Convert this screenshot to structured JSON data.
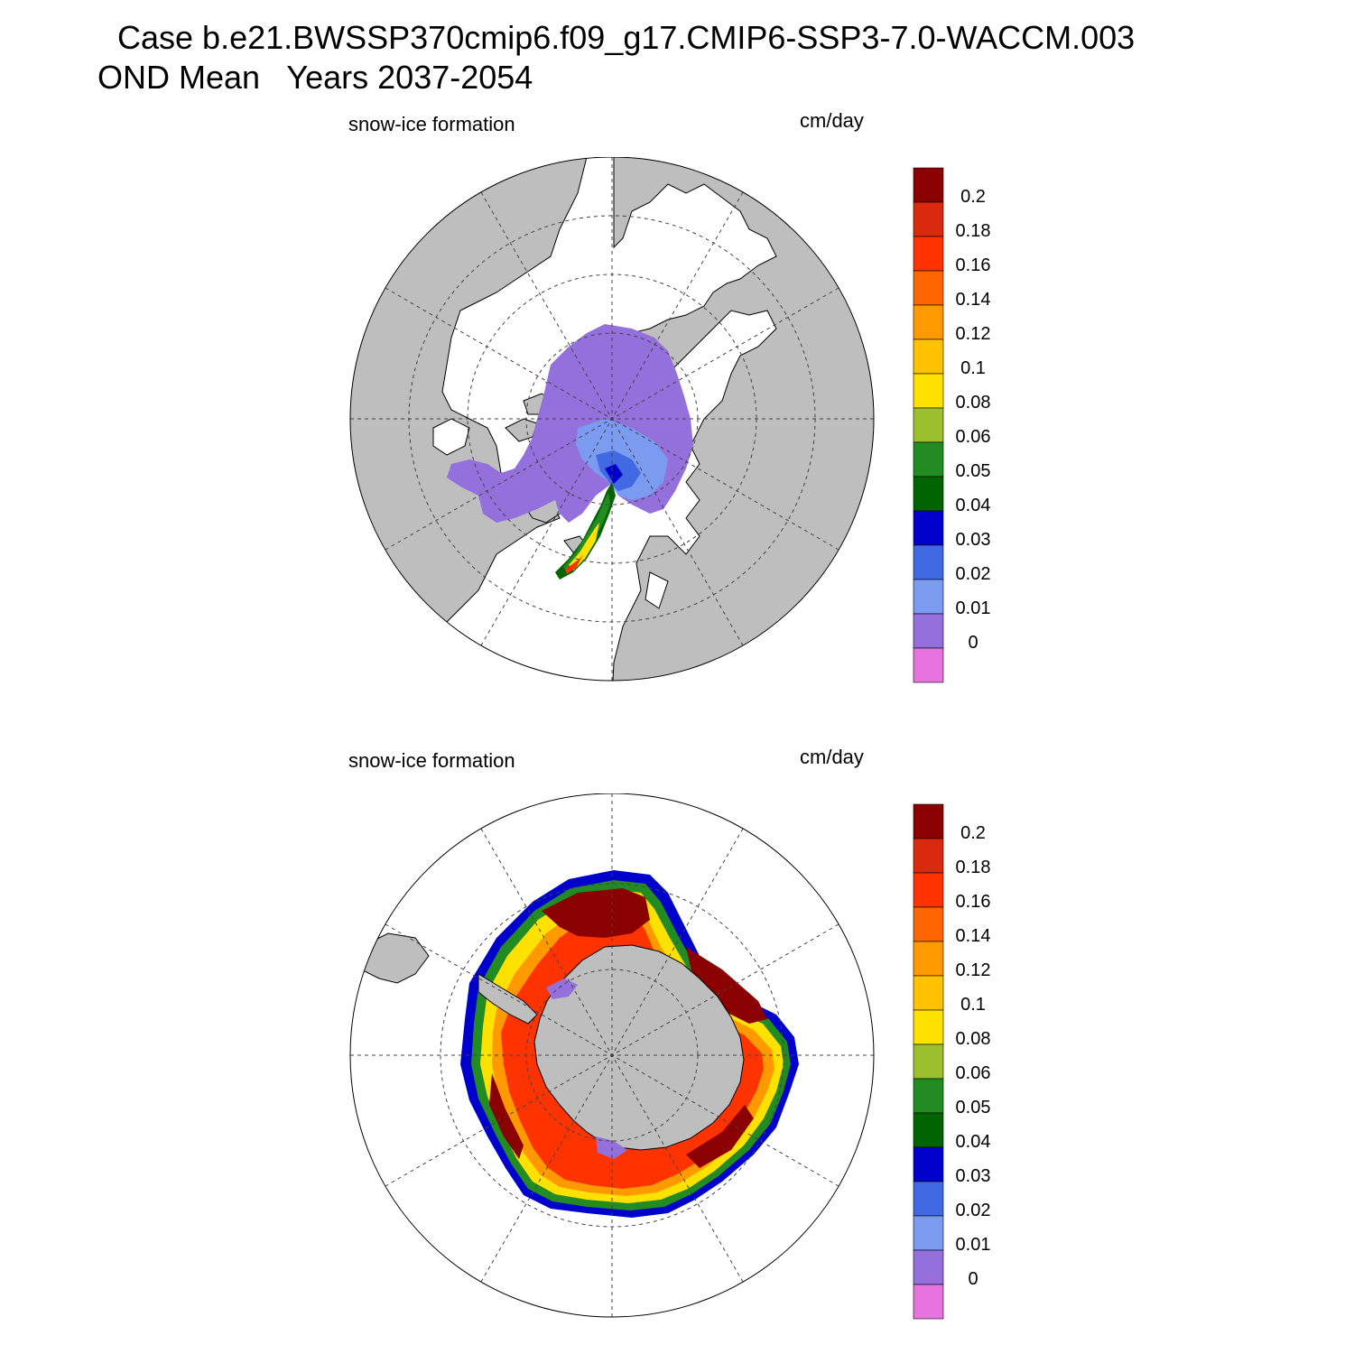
{
  "header": {
    "title_line1": "Case b.e21.BWSSP370cmip6.f09_g17.CMIP6-SSP3-7.0-WACCM.003",
    "title_line2": "OND Mean   Years 2037-2054"
  },
  "panels": [
    {
      "id": "north",
      "hemisphere": "Northern Hemisphere polar stereographic",
      "variable_label": "snow-ice formation",
      "units_label": "cm/day"
    },
    {
      "id": "south",
      "hemisphere": "Southern Hemisphere polar stereographic",
      "variable_label": "snow-ice formation",
      "units_label": "cm/day"
    }
  ],
  "colorbar": {
    "labels": [
      "0.2",
      "0.18",
      "0.16",
      "0.14",
      "0.12",
      "0.1",
      "0.08",
      "0.06",
      "0.05",
      "0.04",
      "0.03",
      "0.02",
      "0.01",
      "0"
    ],
    "colors_top_to_bottom": [
      "#8b0000",
      "#d92a10",
      "#ff3300",
      "#ff6600",
      "#ff9900",
      "#ffc200",
      "#ffe100",
      "#9cbf2e",
      "#228b22",
      "#006400",
      "#0000cd",
      "#4169e1",
      "#7b9bf0",
      "#9370db",
      "#e673de"
    ]
  },
  "map_style": {
    "land_color": "#bebebe",
    "ocean_color": "#ffffff",
    "grid_color": "#444444"
  }
}
